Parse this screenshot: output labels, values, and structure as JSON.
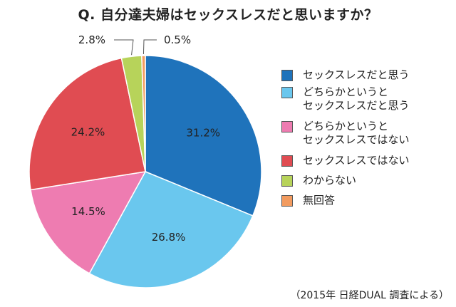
{
  "title": "Q. 自分達夫婦はセックスレスだと思いますか？",
  "source": "（2015年 日経DUAL 調査による）",
  "chart_data": {
    "type": "pie",
    "start": "top",
    "direction": "clockwise",
    "legend_position": "right",
    "slices": [
      {
        "label": "セックスレスだと思う",
        "value": 31.2,
        "value_label": "31.2%",
        "color": "#1f73bb"
      },
      {
        "label": "どちらかというと\nセックスレスだと思う",
        "value": 26.8,
        "value_label": "26.8%",
        "color": "#6ac7ee"
      },
      {
        "label": "どちらかというと\nセックスレスではない",
        "value": 14.5,
        "value_label": "14.5%",
        "color": "#ee7cb1"
      },
      {
        "label": "セックスレスではない",
        "value": 24.2,
        "value_label": "24.2%",
        "color": "#e04c52"
      },
      {
        "label": "わからない",
        "value": 2.8,
        "value_label": "2.8%",
        "color": "#b7d35a"
      },
      {
        "label": "無回答",
        "value": 0.5,
        "value_label": "0.5%",
        "color": "#f29b5f"
      }
    ]
  }
}
